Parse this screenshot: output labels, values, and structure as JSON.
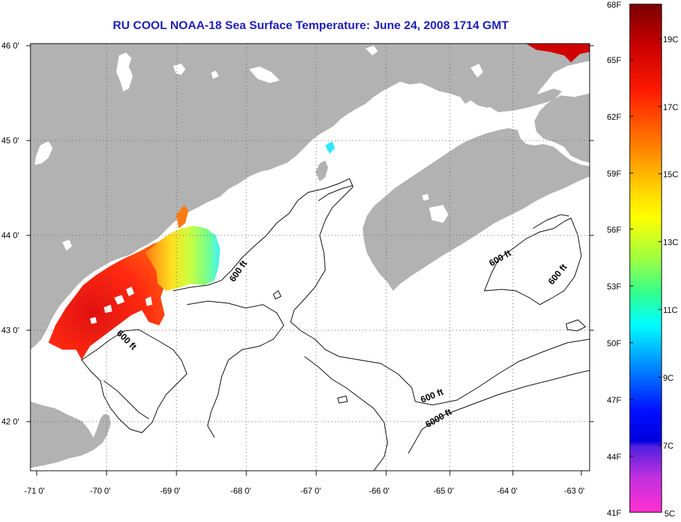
{
  "title": "RU COOL  NOAA-18  Sea Surface Temperature:  June 24, 2008 1714 GMT",
  "colors": {
    "land": "#b2b2b2",
    "ocean": "#ffffff",
    "frame": "#000000",
    "title": "#1f1fb8"
  },
  "lat_labels": [
    "46 0'",
    "45 0'",
    "44 0'",
    "43 0'",
    "42 0'"
  ],
  "lon_labels": [
    "-71 0'",
    "-70 0'",
    "-69 0'",
    "-68 0'",
    "-67 0'",
    "-66 0'",
    "-65 0'",
    "-64 0'",
    "-63 0'"
  ],
  "contour_labels": {
    "c1": "600 ft",
    "c2": "600 ft",
    "c3": "600 ft",
    "c4": "600 ft",
    "c5": "600 ft",
    "c6": "6000 ft"
  },
  "colorbar": {
    "f_labels": [
      "68F",
      "65F",
      "62F",
      "59F",
      "56F",
      "53F",
      "50F",
      "47F",
      "44F",
      "41F"
    ],
    "c_labels": [
      "19C",
      "17C",
      "15C",
      "13C",
      "11C",
      "9C",
      "7C",
      "5C"
    ]
  }
}
